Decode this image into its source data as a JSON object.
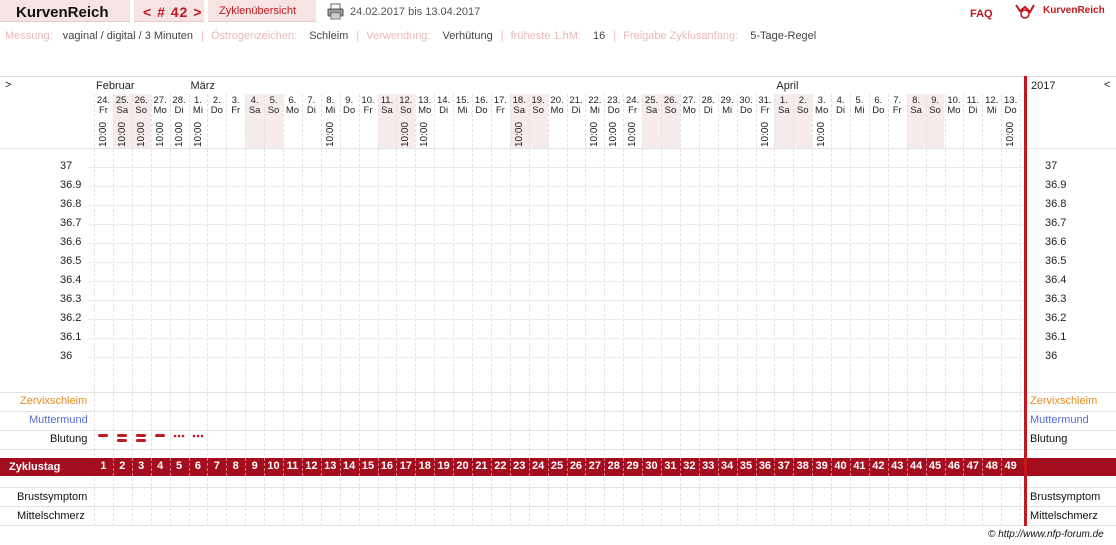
{
  "header": {
    "brand": "KurvenReich",
    "cycle_nav": "< # 42 >",
    "overview_tab": "Zyklenübersicht",
    "print_icon": "printer-icon",
    "date_range": "24.02.2017 bis 13.04.2017",
    "faq": "FAQ",
    "logo_icon": "kurvenreich-logo-icon",
    "logo_text": "KurvenReich"
  },
  "info": {
    "messung_label": "Messung:",
    "messung_value": "vaginal / digital / 3 Minuten",
    "oestrogen_label": "Östrogenzeichen:",
    "oestrogen_value": "Schleim",
    "verwendung_label": "Verwendung:",
    "verwendung_value": "Verhütung",
    "fruheste_label": "früheste 1.hM:",
    "fruheste_value": "16",
    "freigabe_label": "Freigabe Zyklusanfang:",
    "freigabe_value": "5-Tage-Regel"
  },
  "chart": {
    "nav_left": ">",
    "nav_right": "<",
    "year": "2017",
    "months": [
      "Februar",
      "März",
      "April"
    ],
    "days": [
      {
        "d": "24.",
        "w": "Fr",
        "t": "10:00",
        "we": false
      },
      {
        "d": "25.",
        "w": "Sa",
        "t": "10:00",
        "we": true
      },
      {
        "d": "26.",
        "w": "So",
        "t": "10:00",
        "we": true
      },
      {
        "d": "27.",
        "w": "Mo",
        "t": "10:00",
        "we": false
      },
      {
        "d": "28.",
        "w": "Di",
        "t": "10:00",
        "we": false
      },
      {
        "d": "1.",
        "w": "Mi",
        "t": "10:00",
        "we": false
      },
      {
        "d": "2.",
        "w": "Do",
        "t": "",
        "we": false
      },
      {
        "d": "3.",
        "w": "Fr",
        "t": "",
        "we": false
      },
      {
        "d": "4.",
        "w": "Sa",
        "t": "",
        "we": true
      },
      {
        "d": "5.",
        "w": "So",
        "t": "",
        "we": true
      },
      {
        "d": "6.",
        "w": "Mo",
        "t": "",
        "we": false
      },
      {
        "d": "7.",
        "w": "Di",
        "t": "",
        "we": false
      },
      {
        "d": "8.",
        "w": "Mi",
        "t": "10:00",
        "we": false
      },
      {
        "d": "9.",
        "w": "Do",
        "t": "",
        "we": false
      },
      {
        "d": "10.",
        "w": "Fr",
        "t": "",
        "we": false
      },
      {
        "d": "11.",
        "w": "Sa",
        "t": "",
        "we": true
      },
      {
        "d": "12.",
        "w": "So",
        "t": "10:00",
        "we": true
      },
      {
        "d": "13.",
        "w": "Mo",
        "t": "10:00",
        "we": false
      },
      {
        "d": "14.",
        "w": "Di",
        "t": "",
        "we": false
      },
      {
        "d": "15.",
        "w": "Mi",
        "t": "",
        "we": false
      },
      {
        "d": "16.",
        "w": "Do",
        "t": "",
        "we": false
      },
      {
        "d": "17.",
        "w": "Fr",
        "t": "",
        "we": false
      },
      {
        "d": "18.",
        "w": "Sa",
        "t": "10:00",
        "we": true
      },
      {
        "d": "19.",
        "w": "So",
        "t": "",
        "we": true
      },
      {
        "d": "20.",
        "w": "Mo",
        "t": "",
        "we": false
      },
      {
        "d": "21.",
        "w": "Di",
        "t": "",
        "we": false
      },
      {
        "d": "22.",
        "w": "Mi",
        "t": "10:00",
        "we": false
      },
      {
        "d": "23.",
        "w": "Do",
        "t": "10:00",
        "we": false
      },
      {
        "d": "24.",
        "w": "Fr",
        "t": "10:00",
        "we": false
      },
      {
        "d": "25.",
        "w": "Sa",
        "t": "",
        "we": true
      },
      {
        "d": "26.",
        "w": "So",
        "t": "",
        "we": true
      },
      {
        "d": "27.",
        "w": "Mo",
        "t": "",
        "we": false
      },
      {
        "d": "28.",
        "w": "Di",
        "t": "",
        "we": false
      },
      {
        "d": "29.",
        "w": "Mi",
        "t": "",
        "we": false
      },
      {
        "d": "30.",
        "w": "Do",
        "t": "",
        "we": false
      },
      {
        "d": "31.",
        "w": "Fr",
        "t": "10:00",
        "we": false
      },
      {
        "d": "1.",
        "w": "Sa",
        "t": "",
        "we": true
      },
      {
        "d": "2.",
        "w": "So",
        "t": "",
        "we": true
      },
      {
        "d": "3.",
        "w": "Mo",
        "t": "10:00",
        "we": false
      },
      {
        "d": "4.",
        "w": "Di",
        "t": "",
        "we": false
      },
      {
        "d": "5.",
        "w": "Mi",
        "t": "",
        "we": false
      },
      {
        "d": "6.",
        "w": "Do",
        "t": "",
        "we": false
      },
      {
        "d": "7.",
        "w": "Fr",
        "t": "",
        "we": false
      },
      {
        "d": "8.",
        "w": "Sa",
        "t": "",
        "we": true
      },
      {
        "d": "9.",
        "w": "So",
        "t": "",
        "we": true
      },
      {
        "d": "10.",
        "w": "Mo",
        "t": "",
        "we": false
      },
      {
        "d": "11.",
        "w": "Di",
        "t": "",
        "we": false
      },
      {
        "d": "12.",
        "w": "Mi",
        "t": "",
        "we": false
      },
      {
        "d": "13.",
        "w": "Do",
        "t": "10:00",
        "we": false
      }
    ],
    "temp_ticks": [
      "37",
      "36.9",
      "36.8",
      "36.7",
      "36.6",
      "36.5",
      "36.4",
      "36.3",
      "36.2",
      "36.1",
      "36"
    ],
    "rows": {
      "zervix": "Zervixschleim",
      "muttermund": "Muttermund",
      "blutung": "Blutung",
      "zyklustag": "Zyklustag",
      "brust": "Brustsymptom",
      "mittel": "Mittelschmerz"
    },
    "bleeding": [
      "medium",
      "heavy",
      "heavy",
      "medium",
      "light",
      "light"
    ],
    "colors": {
      "accent": "#c21820",
      "zervix": "#e58a1f",
      "muttermund": "#5a6bd6",
      "band": "#a30d1e",
      "weekend": "#f6ecec"
    }
  },
  "footer": {
    "copyright": "© http://www.nfp-forum.de"
  }
}
